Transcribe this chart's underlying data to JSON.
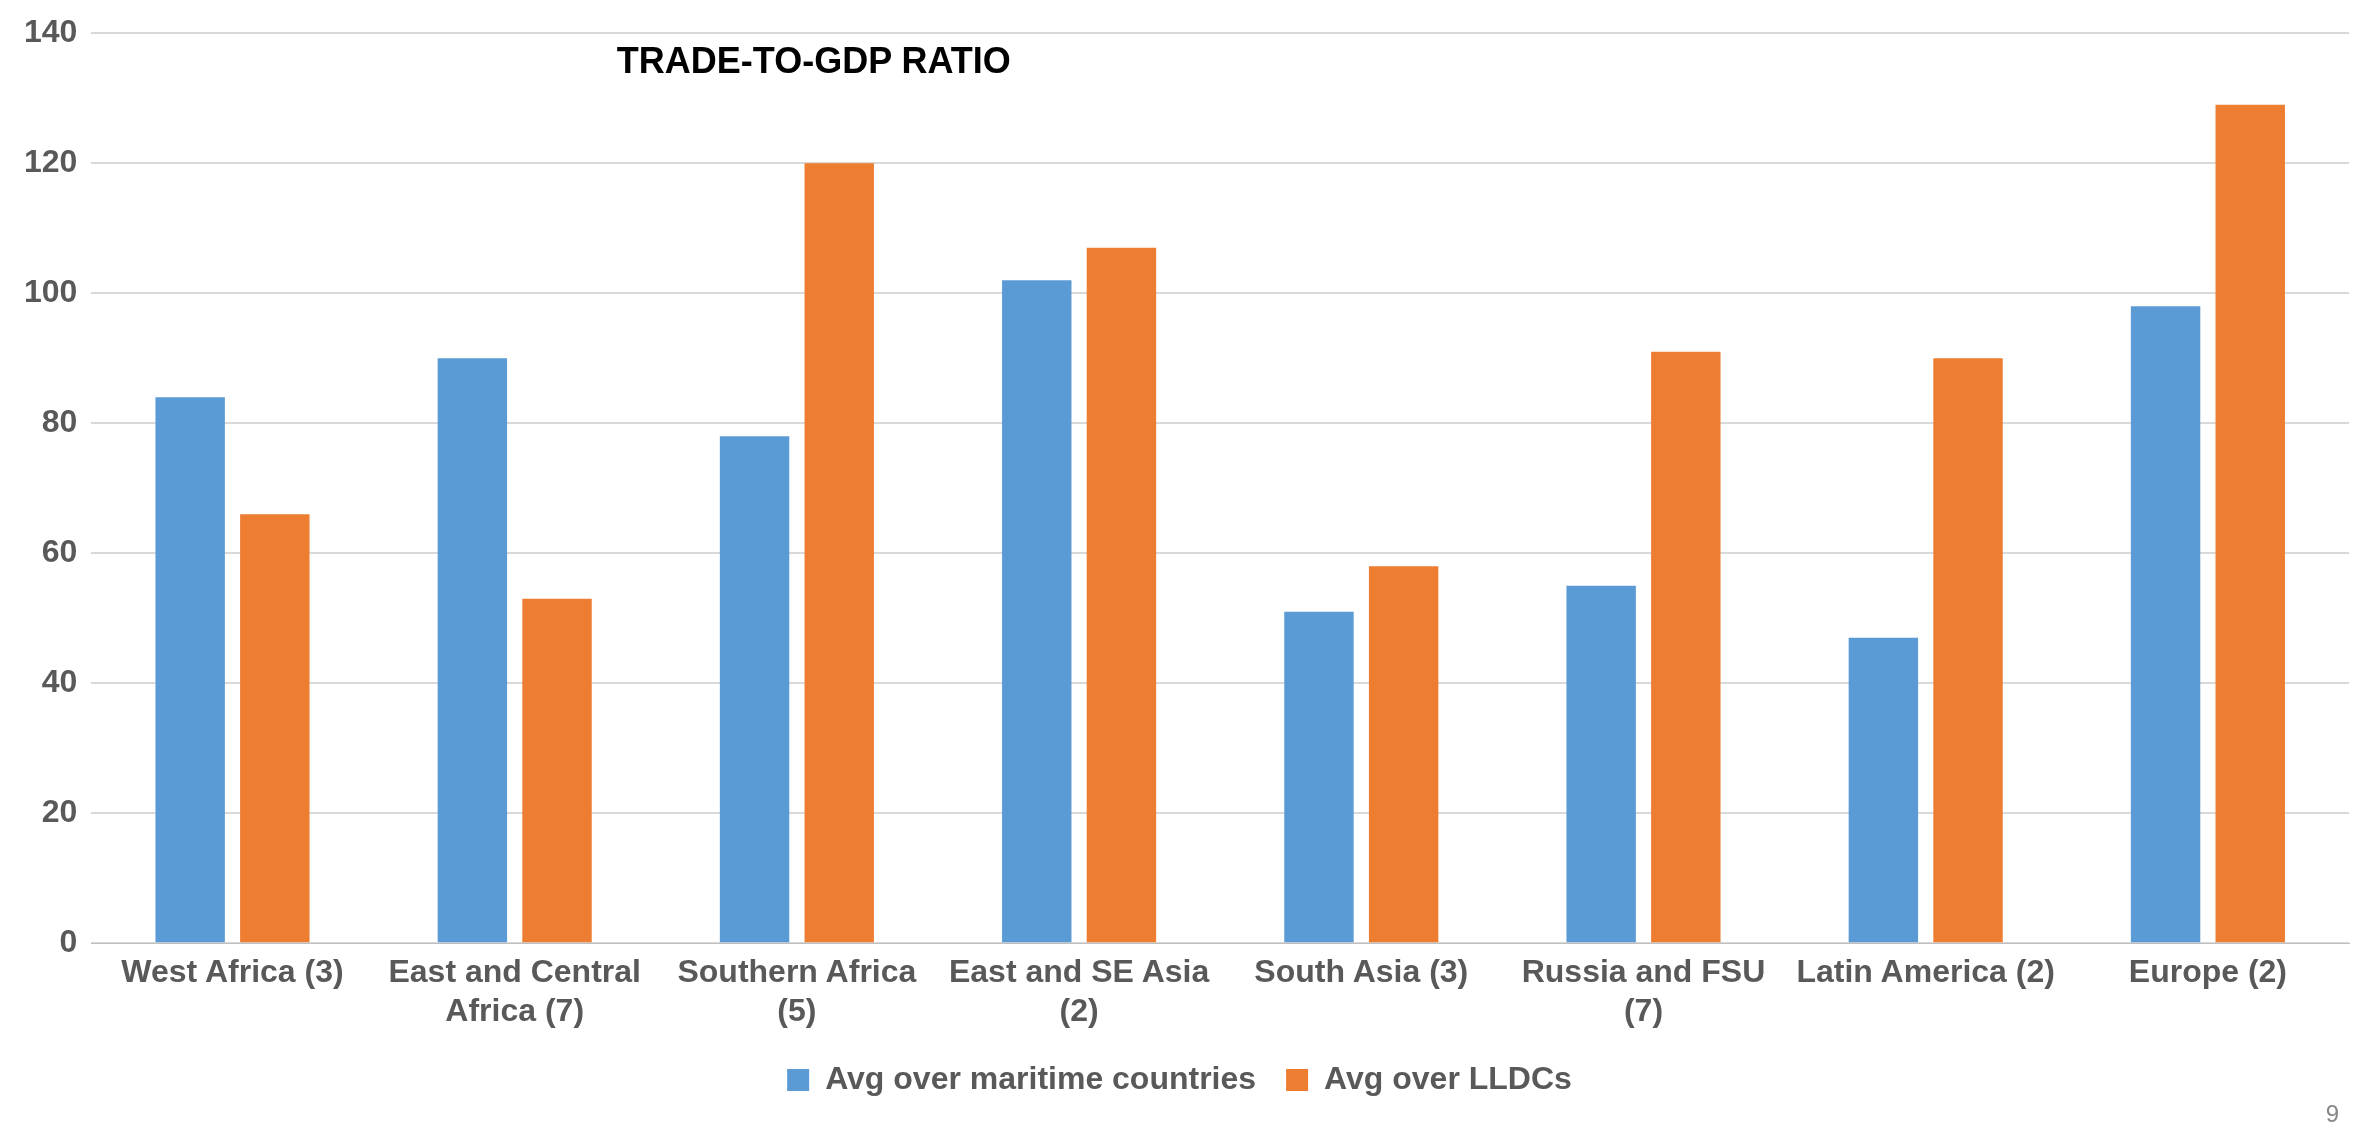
{
  "chart_data": {
    "type": "bar",
    "title": "TRADE-TO-GDP RATIO",
    "categories": [
      "West Africa (3)",
      "East and Central Africa (7)",
      "Southern Africa (5)",
      "East and SE Asia (2)",
      "South Asia (3)",
      "Russia and FSU (7)",
      "Latin America (2)",
      "Europe (2)"
    ],
    "series": [
      {
        "name": "Avg over maritime countries",
        "color": "#5b9bd5",
        "values": [
          84,
          90,
          78,
          102,
          51,
          55,
          47,
          98
        ]
      },
      {
        "name": "Avg over LLDCs",
        "color": "#ed7d31",
        "values": [
          66,
          53,
          120,
          107,
          58,
          91,
          90,
          129
        ]
      }
    ],
    "ylim": [
      0,
      140
    ],
    "yticks": [
      0,
      20,
      40,
      60,
      80,
      100,
      120,
      140
    ],
    "grid": "y",
    "legend": "bottom",
    "annotations": [
      "9"
    ]
  }
}
